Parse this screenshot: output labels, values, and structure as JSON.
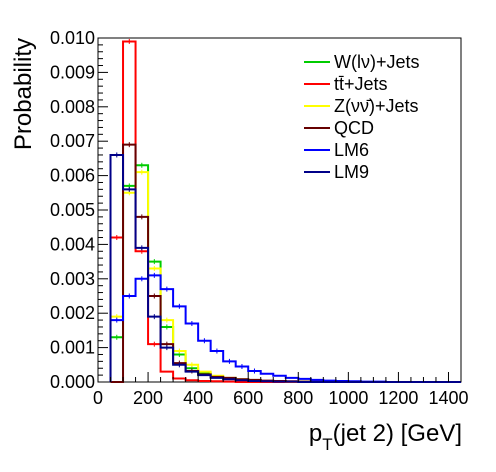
{
  "chart_data": {
    "type": "histogram",
    "xlabel": "p_T(jet 2) [GeV]",
    "xlabel_main": "p",
    "xlabel_sub": "T",
    "xlabel_rest": "(jet 2) [GeV]",
    "ylabel": "Probability",
    "xlim": [
      0,
      1450
    ],
    "ylim": [
      0,
      0.01
    ],
    "xticks": [
      "0",
      "200",
      "400",
      "600",
      "800",
      "1000",
      "1200",
      "1400"
    ],
    "yticks": [
      "0.000",
      "0.001",
      "0.002",
      "0.003",
      "0.004",
      "0.005",
      "0.006",
      "0.007",
      "0.008",
      "0.009",
      "0.010"
    ],
    "bin_edges": [
      50,
      100,
      150,
      200,
      250,
      300,
      350,
      400,
      450,
      500,
      550,
      600,
      650,
      700,
      750,
      800,
      850,
      900,
      950,
      1000,
      1050,
      1100,
      1150,
      1200,
      1250,
      1300,
      1350,
      1400,
      1450
    ],
    "legend_position": "top-right",
    "series": [
      {
        "name": "W(lν)+Jets",
        "color": "#00cc00",
        "values": [
          0.0013,
          0.0057,
          0.0063,
          0.0035,
          0.0016,
          0.0008,
          0.0004,
          0.00025,
          0.00015,
          0.0001,
          7e-05,
          5e-05,
          3e-05,
          2e-05,
          1e-05,
          1e-05,
          0,
          0,
          0,
          0,
          0,
          0,
          0,
          0,
          0,
          0,
          0,
          0
        ]
      },
      {
        "name": "tt̄+Jets",
        "color": "#ff0000",
        "values": [
          0.0042,
          0.0099,
          0.0038,
          0.0011,
          0.0003,
          0.0001,
          5e-05,
          3e-05,
          2e-05,
          1e-05,
          0,
          0,
          0,
          0,
          0,
          0,
          0,
          0,
          0,
          0,
          0,
          0,
          0,
          0,
          0,
          0,
          0,
          0
        ]
      },
      {
        "name": "Z(νν̄)+Jets",
        "color": "#ffff00",
        "values": [
          0.0019,
          0.0055,
          0.0061,
          0.0033,
          0.0018,
          0.0009,
          0.0005,
          0.0003,
          0.00018,
          0.00012,
          8e-05,
          5e-05,
          3e-05,
          2e-05,
          1e-05,
          1e-05,
          0,
          0,
          0,
          0,
          0,
          0,
          0,
          0,
          0,
          0,
          0,
          0
        ]
      },
      {
        "name": "QCD",
        "color": "#660000",
        "values": [
          0.0,
          0.0069,
          0.0048,
          0.0025,
          0.0011,
          0.00055,
          0.00032,
          0.00022,
          0.00015,
          0.00012,
          8e-05,
          6e-05,
          4e-05,
          3e-05,
          2e-05,
          1e-05,
          1e-05,
          0,
          0,
          0,
          0,
          0,
          0,
          0,
          0,
          0,
          0,
          0
        ]
      },
      {
        "name": "LM6",
        "color": "#0000ff",
        "values": [
          0.0018,
          0.0025,
          0.003,
          0.0031,
          0.0027,
          0.0022,
          0.0017,
          0.0012,
          0.0009,
          0.0006,
          0.00045,
          0.00032,
          0.00024,
          0.00018,
          0.00012,
          9e-05,
          6e-05,
          4e-05,
          3e-05,
          2e-05,
          1e-05,
          1e-05,
          0,
          0,
          0,
          0,
          0,
          0
        ]
      },
      {
        "name": "LM9",
        "color": "#000088",
        "values": [
          0.0066,
          0.0056,
          0.0039,
          0.0019,
          0.001,
          0.0005,
          0.0003,
          0.0002,
          0.00012,
          8e-05,
          5e-05,
          3e-05,
          2e-05,
          1e-05,
          1e-05,
          0,
          0,
          0,
          0,
          0,
          0,
          0,
          0,
          0,
          0,
          0,
          0,
          0
        ]
      }
    ]
  }
}
